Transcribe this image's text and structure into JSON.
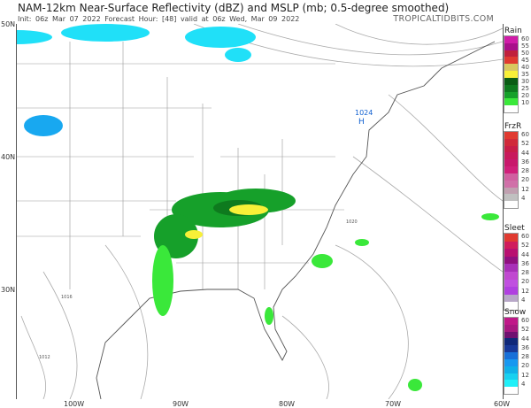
{
  "header": {
    "title": "NAM-12km Near-Surface Reflectivity (dBZ) and MSLP (mb; 0.5-degree smoothed)",
    "subtitle": "Init: 06z Mar 07 2022   Forecast Hour: [48]   valid at 06z Wed, Mar 09 2022",
    "brand": "TROPICALTIDBITS.COM"
  },
  "axes": {
    "lat": [
      "50N",
      "40N",
      "30N"
    ],
    "lon": [
      "100W",
      "90W",
      "80W",
      "70W",
      "60W"
    ]
  },
  "map": {
    "pressure_labels": [
      "1024",
      "1020",
      "1016",
      "1012"
    ],
    "high_label": "H"
  },
  "legends": [
    {
      "title": "Rain",
      "labels": [
        "60",
        "55",
        "50",
        "45",
        "40",
        "35",
        "30",
        "25",
        "20",
        "10"
      ],
      "colors": [
        "#d01ca8",
        "#a8108a",
        "#c0203c",
        "#e03a30",
        "#d8c860",
        "#f8f038",
        "#0a5c14",
        "#0e7a1e",
        "#16a02a",
        "#3ae83a",
        "#ffffff"
      ]
    },
    {
      "title": "FrzR",
      "labels": [
        "60",
        "52",
        "44",
        "36",
        "28",
        "20",
        "12",
        "4"
      ],
      "colors": [
        "#e03a30",
        "#d02a3a",
        "#c81e48",
        "#c81a5c",
        "#c8186c",
        "#d0207a",
        "#d060a0",
        "#d070a8",
        "#c0a0b0",
        "#c0c0c0",
        "#ffffff"
      ]
    },
    {
      "title": "Sleet",
      "labels": [
        "60",
        "52",
        "44",
        "36",
        "28",
        "20",
        "12",
        "4"
      ],
      "colors": [
        "#e03a30",
        "#d01c5c",
        "#b81070",
        "#901080",
        "#a830b8",
        "#c048d0",
        "#c050e0",
        "#b040e0",
        "#b8a8c8",
        "#ffffff"
      ]
    },
    {
      "title": "Snow",
      "labels": [
        "60",
        "52",
        "44",
        "36",
        "28",
        "20",
        "12",
        "4"
      ],
      "colors": [
        "#c01888",
        "#a81880",
        "#701070",
        "#102878",
        "#183898",
        "#1870d8",
        "#1898f0",
        "#10b0e8",
        "#18d0f0",
        "#20f0f8",
        "#ffffff"
      ]
    }
  ]
}
